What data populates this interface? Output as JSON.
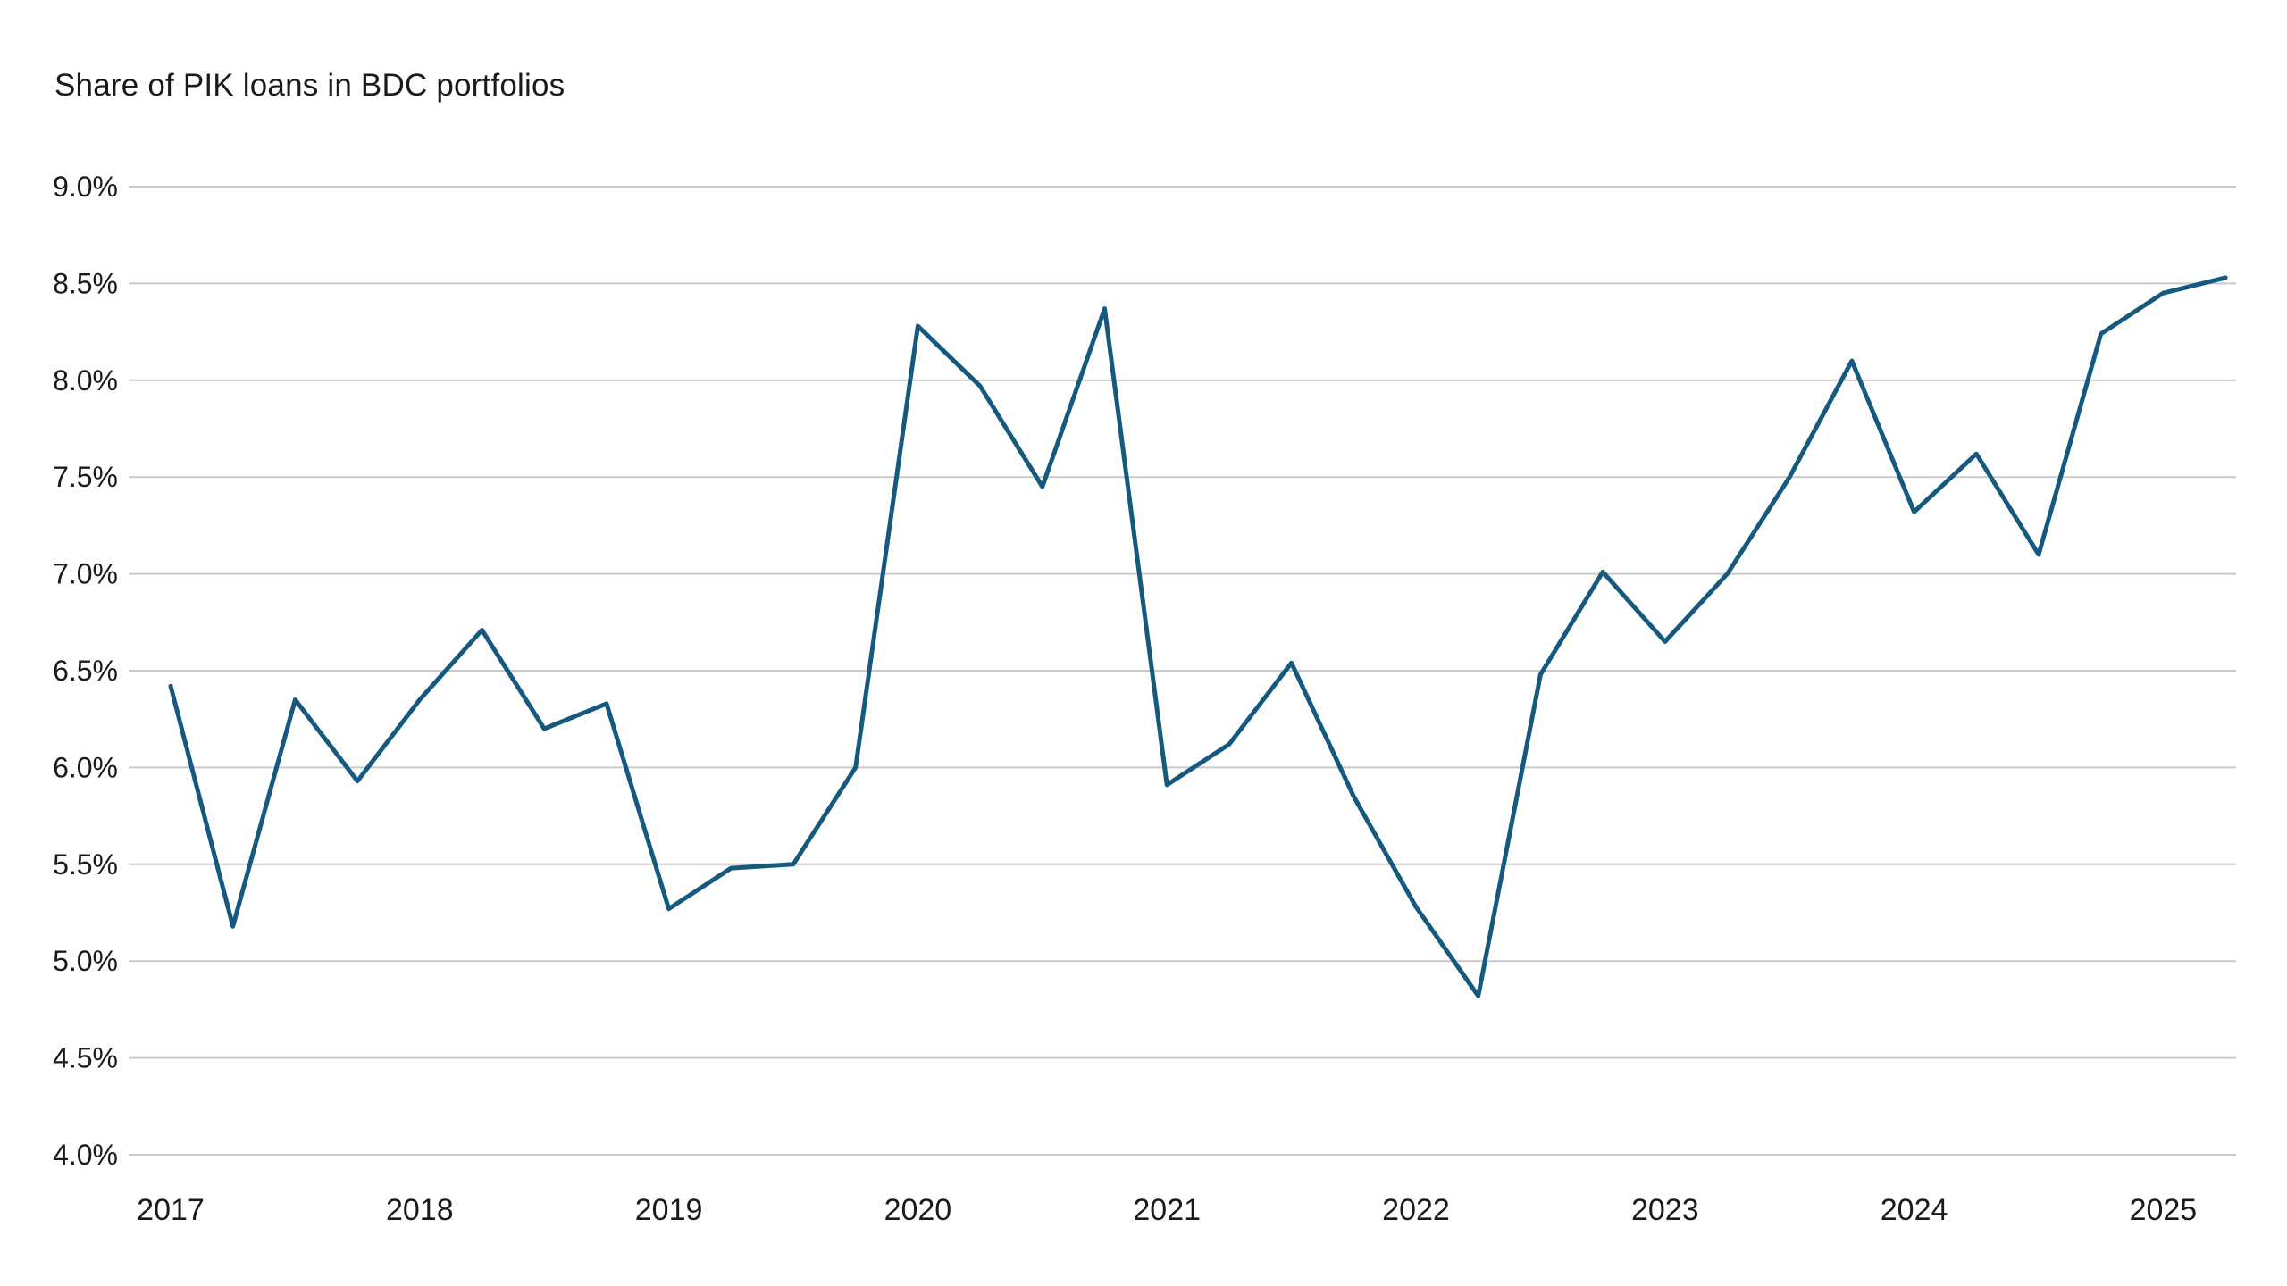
{
  "title": "Share of PIK loans in BDC portfolios",
  "colors": {
    "line": "#15597F",
    "grid": "#C9C9C9",
    "text": "#1A1A1A",
    "background": "#FFFFFF"
  },
  "chart_data": {
    "type": "line",
    "title": "Share of PIK loans in BDC portfolios",
    "series": [
      {
        "name": "Share of PIK loans in BDC portfolios",
        "values": [
          6.42,
          5.18,
          6.35,
          5.93,
          6.35,
          6.71,
          6.2,
          6.33,
          5.27,
          5.48,
          5.5,
          6.0,
          8.28,
          7.97,
          7.45,
          8.37,
          5.91,
          6.12,
          6.54,
          5.85,
          5.28,
          4.82,
          6.48,
          7.01,
          6.65,
          7.0,
          7.5,
          8.1,
          7.32,
          7.62,
          7.1,
          8.24,
          8.45,
          8.53
        ]
      }
    ],
    "x": [
      "2017 Q1",
      "2017 Q2",
      "2017 Q3",
      "2017 Q4",
      "2018 Q1",
      "2018 Q2",
      "2018 Q3",
      "2018 Q4",
      "2019 Q1",
      "2019 Q2",
      "2019 Q3",
      "2019 Q4",
      "2020 Q1",
      "2020 Q2",
      "2020 Q3",
      "2020 Q4",
      "2021 Q1",
      "2021 Q2",
      "2021 Q3",
      "2021 Q4",
      "2022 Q1",
      "2022 Q2",
      "2022 Q3",
      "2022 Q4",
      "2023 Q1",
      "2023 Q2",
      "2023 Q3",
      "2023 Q4",
      "2024 Q1",
      "2024 Q2",
      "2024 Q3",
      "2024 Q4",
      "2025 Q1",
      "2025 Q2"
    ],
    "x_tick_labels": [
      "2017",
      "2018",
      "2019",
      "2020",
      "2021",
      "2022",
      "2023",
      "2024",
      "2025"
    ],
    "y_tick_values": [
      4.0,
      4.5,
      5.0,
      5.5,
      6.0,
      6.5,
      7.0,
      7.5,
      8.0,
      8.5,
      9.0
    ],
    "y_tick_labels": [
      "4.0%",
      "4.5%",
      "5.0%",
      "5.5%",
      "6.0%",
      "6.5%",
      "7.0%",
      "7.5%",
      "8.0%",
      "8.5%",
      "9.0%"
    ],
    "ylim": [
      4.0,
      9.0
    ],
    "unit": "%",
    "grid": "horizontal",
    "legend": "none"
  }
}
